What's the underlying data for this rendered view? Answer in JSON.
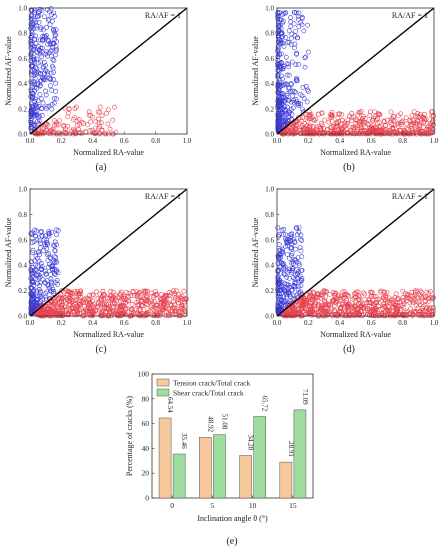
{
  "colors": {
    "tension": "#f7c89b",
    "shear": "#9fdc9f",
    "tension_points": "#e8424f",
    "shear_points": "#3a3ad8",
    "axis": "#333333"
  },
  "chart_data": [
    {
      "panel_label": "(a)",
      "type": "scatter",
      "xlabel": "Normalized RA-value",
      "ylabel": "Normalized AF-value",
      "xlim": [
        0,
        1
      ],
      "ylim": [
        0,
        1
      ],
      "xticks": [
        "0.0",
        "0.2",
        "0.4",
        "0.6",
        "0.8",
        "1.0"
      ],
      "yticks": [
        "0.0",
        "0.2",
        "0.4",
        "0.6",
        "0.8",
        "1.0"
      ],
      "reference_line": {
        "label": "RA/AF = 1",
        "from": [
          0,
          0
        ],
        "to": [
          1,
          1
        ]
      },
      "clusters": [
        {
          "kind": "shear_points",
          "n": 260,
          "x": [
            0.005,
            0.17
          ],
          "y": [
            0.02,
            1.0
          ],
          "xpow": 1.8,
          "ypow": 1.1,
          "rule": "above"
        },
        {
          "kind": "tension_points",
          "n": 130,
          "x": [
            0.03,
            0.55
          ],
          "y": [
            0.0,
            0.22
          ],
          "xpow": 1.6,
          "ypow": 2.2,
          "rule": "below"
        }
      ]
    },
    {
      "panel_label": "(b)",
      "type": "scatter",
      "xlabel": "Normalized RA-value",
      "ylabel": "Normalized AF-value",
      "xlim": [
        0,
        1
      ],
      "ylim": [
        0,
        1
      ],
      "xticks": [
        "0.0",
        "0.2",
        "0.4",
        "0.6",
        "0.8",
        "1.0"
      ],
      "yticks": [
        "0.0",
        "0.2",
        "0.4",
        "0.6",
        "0.8",
        "1.0"
      ],
      "reference_line": {
        "label": "RA/AF = 1",
        "from": [
          0,
          0
        ],
        "to": [
          1,
          1
        ]
      },
      "clusters": [
        {
          "kind": "shear_points",
          "n": 320,
          "x": [
            0.005,
            0.2
          ],
          "y": [
            0.02,
            0.97
          ],
          "xpow": 2.2,
          "ypow": 1.6,
          "rule": "above"
        },
        {
          "kind": "tension_points",
          "n": 520,
          "x": [
            0.03,
            1.0
          ],
          "y": [
            0.0,
            0.18
          ],
          "xpow": 1.2,
          "ypow": 2.0,
          "rule": "below"
        }
      ]
    },
    {
      "panel_label": "(c)",
      "type": "scatter",
      "xlabel": "Normalized RA-value",
      "ylabel": "Normalized AF-value",
      "xlim": [
        0,
        1
      ],
      "ylim": [
        0,
        1
      ],
      "xticks": [
        "0.0",
        "0.2",
        "0.4",
        "0.6",
        "0.8",
        "1.0"
      ],
      "yticks": [
        "0.0",
        "0.2",
        "0.4",
        "0.6",
        "0.8",
        "1.0"
      ],
      "reference_line": {
        "label": "RA/AF = 1",
        "from": [
          0,
          0
        ],
        "to": [
          1,
          1
        ]
      },
      "clusters": [
        {
          "kind": "shear_points",
          "n": 230,
          "x": [
            0.005,
            0.18
          ],
          "y": [
            0.02,
            0.68
          ],
          "xpow": 1.6,
          "ypow": 1.9,
          "rule": "above"
        },
        {
          "kind": "tension_points",
          "n": 620,
          "x": [
            0.04,
            1.0
          ],
          "y": [
            0.0,
            0.2
          ],
          "xpow": 1.3,
          "ypow": 1.5,
          "rule": "below"
        }
      ]
    },
    {
      "panel_label": "(d)",
      "type": "scatter",
      "xlabel": "Normalized RA-value",
      "ylabel": "Normalized AF-value",
      "xlim": [
        0,
        1
      ],
      "ylim": [
        0,
        1
      ],
      "xticks": [
        "0.0",
        "0.2",
        "0.4",
        "0.6",
        "0.8",
        "1.0"
      ],
      "yticks": [
        "0.0",
        "0.2",
        "0.4",
        "0.6",
        "0.8",
        "1.0"
      ],
      "reference_line": {
        "label": "RA/AF = 1",
        "from": [
          0,
          0
        ],
        "to": [
          1,
          1
        ]
      },
      "clusters": [
        {
          "kind": "shear_points",
          "n": 240,
          "x": [
            0.005,
            0.16
          ],
          "y": [
            0.02,
            0.7
          ],
          "xpow": 1.6,
          "ypow": 2.0,
          "rule": "above"
        },
        {
          "kind": "tension_points",
          "n": 640,
          "x": [
            0.04,
            1.0
          ],
          "y": [
            0.0,
            0.2
          ],
          "xpow": 1.3,
          "ypow": 1.5,
          "rule": "below"
        }
      ]
    },
    {
      "panel_label": "(e)",
      "type": "bar",
      "xlabel": "Inclination angle θ (°)",
      "ylabel": "Percentage of cracks (%)",
      "categories": [
        "0",
        "5",
        "10",
        "15"
      ],
      "ylim": [
        0,
        100
      ],
      "yticks": [
        "0",
        "20",
        "40",
        "60",
        "80",
        "100"
      ],
      "legend_placement": "top-left",
      "series": [
        {
          "name": "Tension crack/Total crack",
          "values": [
            64.54,
            48.92,
            34.28,
            28.91
          ],
          "labels": [
            "64.54",
            "48.92",
            "34.28",
            "28.91"
          ]
        },
        {
          "name": "Shear crack/Total crack",
          "values": [
            35.46,
            51.08,
            65.72,
            71.09
          ],
          "labels": [
            "35.46",
            "51.08",
            "65.72",
            "71.09"
          ]
        }
      ]
    }
  ]
}
